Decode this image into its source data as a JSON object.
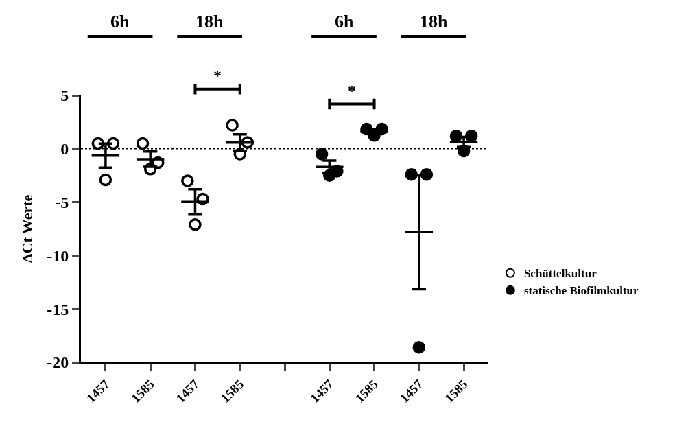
{
  "chart_data": {
    "type": "scatter",
    "ylabel": "ΔCt Werte",
    "categories": [
      "1457",
      "1585",
      "1457",
      "1585",
      null,
      "1457",
      "1585",
      "1457",
      "1585"
    ],
    "series": [
      {
        "name": "Schüttelkultur",
        "marker": "circle-open",
        "color": "#000000",
        "values": [
          0.5,
          0.5,
          -3.0,
          2.2,
          null,
          null,
          null,
          null,
          null
        ]
      },
      {
        "marker": "circle-open",
        "color": "#000000",
        "values": [
          0.5,
          -1.3,
          -4.7,
          0.6,
          null,
          null,
          null,
          null,
          null
        ]
      },
      {
        "marker": "circle-open",
        "color": "#000000",
        "values": [
          -2.9,
          -1.9,
          -7.1,
          -0.5,
          null,
          null,
          null,
          null,
          null
        ]
      },
      {
        "name": "statische Biofilmkultur",
        "marker": "circle",
        "color": "#000000",
        "values": [
          null,
          null,
          null,
          null,
          null,
          -0.5,
          1.85,
          -2.4,
          1.2
        ]
      },
      {
        "marker": "circle",
        "color": "#000000",
        "values": [
          null,
          null,
          null,
          null,
          null,
          -2.1,
          1.85,
          -2.4,
          1.2
        ]
      },
      {
        "marker": "circle",
        "color": "#000000",
        "values": [
          null,
          null,
          null,
          null,
          null,
          -2.5,
          1.25,
          -18.6,
          -0.2
        ]
      },
      {
        "type": "box",
        "color": "#000000",
        "boxes": [
          {
            "low": -1.77,
            "q1": -0.64,
            "median": -0.64,
            "q3": -0.64,
            "high": 0.49
          },
          {
            "low": -1.69,
            "q1": -0.97,
            "median": -0.97,
            "q3": -0.97,
            "high": -0.25
          },
          {
            "low": -6.17,
            "q1": -4.98,
            "median": -4.98,
            "q3": -4.98,
            "high": -3.79
          },
          {
            "low": -0.2,
            "q1": 0.58,
            "median": 0.58,
            "q3": 0.58,
            "high": 1.36
          },
          null,
          {
            "low": -2.3,
            "q1": -1.7,
            "median": -1.7,
            "q3": -1.7,
            "high": -1.1
          },
          {
            "low": 1.4,
            "q1": 1.6,
            "median": 1.6,
            "q3": 1.6,
            "high": 1.8
          },
          {
            "low": -13.15,
            "q1": -7.8,
            "median": -7.8,
            "q3": -7.8,
            "high": -2.45
          },
          {
            "low": 0.17,
            "q1": 0.64,
            "median": 0.64,
            "q3": 0.64,
            "high": 1.11
          }
        ]
      }
    ],
    "ylim": [
      -20,
      5
    ],
    "yticks": [
      -20,
      -15,
      -10,
      -5,
      0,
      5
    ],
    "ref_lines": [
      {
        "axis": "y",
        "value": 0,
        "line_style": "dotted",
        "color": "#000000"
      }
    ],
    "annotations": [
      "6h",
      "18h",
      "6h",
      "18h",
      "*",
      "*"
    ],
    "legend": "right"
  }
}
